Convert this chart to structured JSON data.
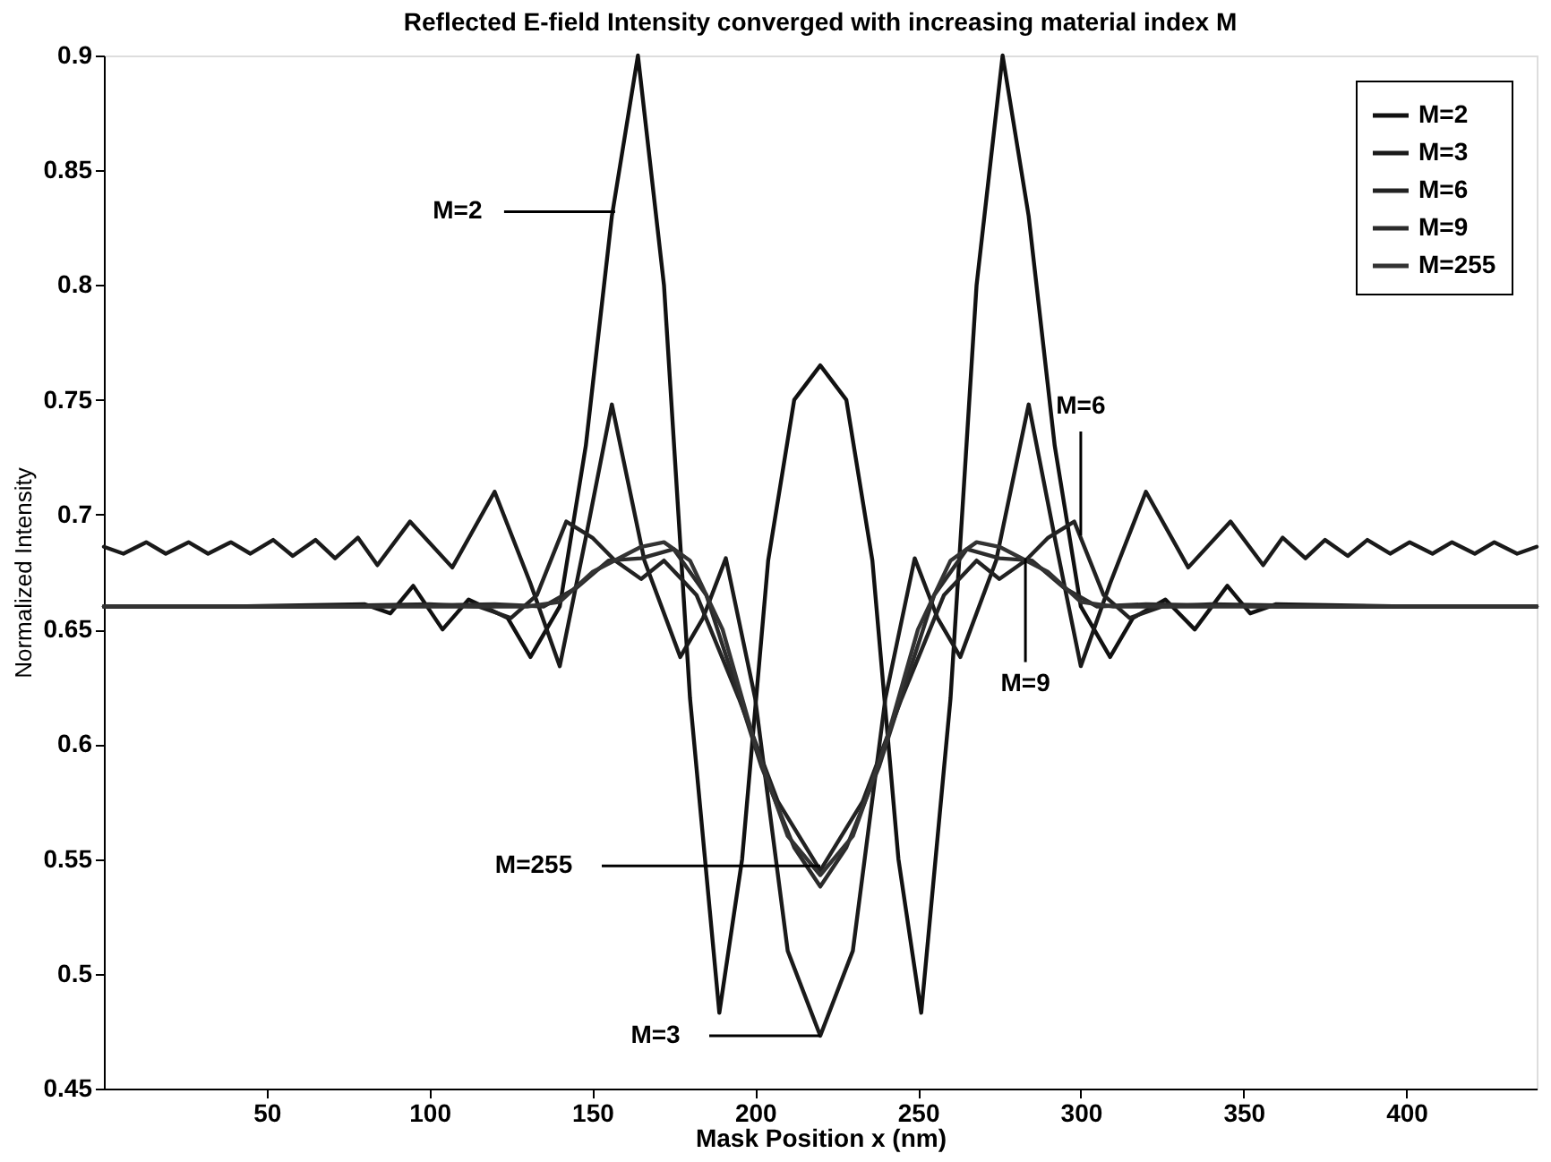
{
  "chart_data": {
    "type": "line",
    "title": "Reflected E-field Intensity converged with increasing material index M",
    "xlabel": "Mask Position x (nm)",
    "ylabel": "Normalized Intensity",
    "xlim": [
      0,
      440
    ],
    "xticks": [
      50,
      100,
      150,
      200,
      250,
      300,
      350,
      400
    ],
    "ylim": [
      0.45,
      0.9
    ],
    "yticks": [
      0.45,
      0.5,
      0.55,
      0.6,
      0.65,
      0.7,
      0.75,
      0.8,
      0.85,
      0.9
    ],
    "grid": false,
    "legend": "top right",
    "line_style": "solid",
    "series": [
      {
        "name": "M=2",
        "color": "#111111",
        "x": [
          0,
          40,
          80,
          88,
          95,
          104,
          112,
          124,
          131,
          140,
          148,
          156,
          164,
          172,
          180,
          189,
          196,
          204,
          212,
          220,
          228,
          236,
          244,
          251,
          260,
          268,
          276,
          284,
          292,
          300,
          309,
          316,
          326,
          335,
          345,
          352,
          360,
          400,
          440
        ],
        "values": [
          0.66,
          0.66,
          0.661,
          0.657,
          0.669,
          0.65,
          0.663,
          0.655,
          0.638,
          0.66,
          0.73,
          0.83,
          0.9,
          0.8,
          0.62,
          0.483,
          0.55,
          0.68,
          0.75,
          0.765,
          0.75,
          0.68,
          0.55,
          0.483,
          0.62,
          0.8,
          0.9,
          0.83,
          0.73,
          0.66,
          0.638,
          0.655,
          0.663,
          0.65,
          0.669,
          0.657,
          0.661,
          0.66,
          0.66
        ]
      },
      {
        "name": "M=3",
        "color": "#1a1a1a",
        "x": [
          0,
          6,
          13,
          19,
          26,
          32,
          39,
          45,
          52,
          58,
          65,
          71,
          78,
          84,
          94,
          107,
          120,
          131,
          140,
          148,
          156,
          166,
          177,
          184,
          191,
          200,
          210,
          220,
          230,
          240,
          249,
          256,
          263,
          274,
          284,
          292,
          300,
          309,
          320,
          333,
          346,
          356,
          362,
          369,
          375,
          382,
          388,
          395,
          401,
          408,
          414,
          421,
          427,
          434,
          440
        ],
        "values": [
          0.686,
          0.683,
          0.688,
          0.683,
          0.688,
          0.683,
          0.688,
          0.683,
          0.689,
          0.682,
          0.689,
          0.681,
          0.69,
          0.678,
          0.697,
          0.677,
          0.71,
          0.67,
          0.634,
          0.69,
          0.748,
          0.68,
          0.638,
          0.655,
          0.681,
          0.62,
          0.51,
          0.473,
          0.51,
          0.62,
          0.681,
          0.655,
          0.638,
          0.68,
          0.748,
          0.69,
          0.634,
          0.67,
          0.71,
          0.677,
          0.697,
          0.678,
          0.69,
          0.681,
          0.689,
          0.682,
          0.689,
          0.683,
          0.688,
          0.683,
          0.688,
          0.683,
          0.688,
          0.683,
          0.686
        ]
      },
      {
        "name": "M=6",
        "color": "#222222",
        "x": [
          0,
          60,
          100,
          115,
          125,
          133,
          142,
          150,
          157,
          165,
          172,
          182,
          195,
          207,
          220,
          233,
          245,
          258,
          268,
          275,
          283,
          290,
          298,
          307,
          315,
          325,
          340,
          380,
          440
        ],
        "values": [
          0.66,
          0.66,
          0.661,
          0.66,
          0.655,
          0.665,
          0.697,
          0.69,
          0.68,
          0.672,
          0.68,
          0.665,
          0.62,
          0.575,
          0.545,
          0.575,
          0.62,
          0.665,
          0.68,
          0.672,
          0.68,
          0.69,
          0.697,
          0.665,
          0.655,
          0.66,
          0.661,
          0.66,
          0.66
        ]
      },
      {
        "name": "M=9",
        "color": "#2b2b2b",
        "x": [
          0,
          80,
          120,
          135,
          145,
          155,
          165,
          175,
          185,
          193,
          202,
          212,
          220,
          228,
          238,
          247,
          255,
          265,
          275,
          285,
          295,
          305,
          320,
          360,
          440
        ],
        "values": [
          0.66,
          0.66,
          0.661,
          0.66,
          0.668,
          0.68,
          0.681,
          0.685,
          0.665,
          0.63,
          0.59,
          0.555,
          0.538,
          0.555,
          0.59,
          0.63,
          0.665,
          0.685,
          0.681,
          0.68,
          0.668,
          0.66,
          0.661,
          0.66,
          0.66
        ]
      },
      {
        "name": "M=255",
        "color": "#333333",
        "x": [
          0,
          80,
          130,
          140,
          150,
          165,
          172,
          180,
          190,
          200,
          210,
          220,
          230,
          240,
          250,
          260,
          268,
          275,
          290,
          300,
          310,
          360,
          440
        ],
        "values": [
          0.66,
          0.66,
          0.66,
          0.662,
          0.675,
          0.686,
          0.688,
          0.68,
          0.65,
          0.6,
          0.56,
          0.543,
          0.56,
          0.6,
          0.65,
          0.68,
          0.688,
          0.686,
          0.675,
          0.662,
          0.66,
          0.66,
          0.66
        ]
      }
    ],
    "annotations": [
      {
        "text": "M=2",
        "x": 157,
        "y": 0.832
      },
      {
        "text": "M=3",
        "x": 220,
        "y": 0.473
      },
      {
        "text": "M=255",
        "x": 220,
        "y": 0.547
      },
      {
        "text": "M=6",
        "x": 300,
        "y": 0.691
      },
      {
        "text": "M=9",
        "x": 283,
        "y": 0.681
      }
    ]
  }
}
